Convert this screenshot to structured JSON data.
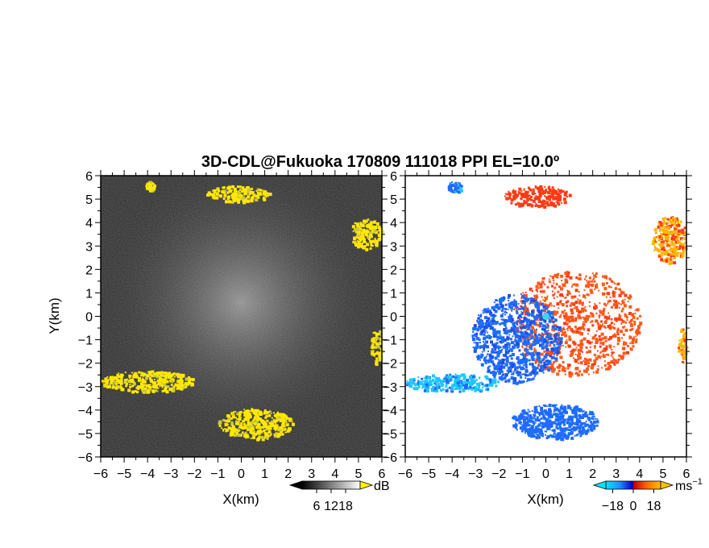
{
  "chart_data": [
    {
      "type": "heatmap",
      "title": "3D-CDL@Fukuoka 170809 111018 PPI EL=10.0º",
      "xlabel": "X(km)",
      "ylabel": "Y(km)",
      "xlim": [
        -6,
        6
      ],
      "ylim": [
        -6,
        6
      ],
      "x_ticks": [
        "−6",
        "−5",
        "−4",
        "−3",
        "−2",
        "−1",
        "0",
        "1",
        "2",
        "3",
        "4",
        "5",
        "6"
      ],
      "y_ticks": [
        "6",
        "5",
        "4",
        "3",
        "2",
        "1",
        "0",
        "−1",
        "−2",
        "−3",
        "−4",
        "−5",
        "−6"
      ],
      "colorbar": {
        "unit": "dB",
        "ticks": [
          "6",
          "12",
          "18"
        ],
        "range": [
          0,
          24
        ]
      },
      "features": [
        {
          "x": [
            -4.1,
            -3.7
          ],
          "y": [
            5.4,
            5.8
          ],
          "level": "yellow"
        },
        {
          "x": [
            -1.5,
            1.2
          ],
          "y": [
            4.9,
            5.6
          ],
          "level": "yellow"
        },
        {
          "x": [
            4.6,
            6.0
          ],
          "y": [
            2.9,
            4.2
          ],
          "level": "yellow"
        },
        {
          "x": [
            5.5,
            6.0
          ],
          "y": [
            -2.0,
            -0.5
          ],
          "level": "yellow"
        },
        {
          "x": [
            -6.0,
            -2.0
          ],
          "y": [
            -3.2,
            -2.3
          ],
          "level": "yellow"
        },
        {
          "x": [
            -1.0,
            2.2
          ],
          "y": [
            -5.2,
            -3.9
          ],
          "level": "yellow"
        }
      ]
    },
    {
      "type": "heatmap",
      "xlabel": "X(km)",
      "xlim": [
        -6,
        6
      ],
      "ylim": [
        -6,
        6
      ],
      "x_ticks": [
        "−6",
        "−5",
        "−4",
        "−3",
        "−2",
        "−1",
        "0",
        "1",
        "2",
        "3",
        "4",
        "5",
        "6"
      ],
      "y_ticks": [
        "6",
        "5",
        "4",
        "3",
        "2",
        "1",
        "0",
        "−1",
        "−2",
        "−3",
        "−4",
        "−5",
        "−6"
      ],
      "colorbar": {
        "unit": "ms",
        "unit_exponent": "−1",
        "ticks": [
          "−18",
          "0",
          "18"
        ],
        "range": [
          -24,
          24
        ]
      },
      "features": [
        {
          "x": [
            -4.2,
            -3.6
          ],
          "y": [
            5.3,
            5.8
          ],
          "velocity": -16
        },
        {
          "x": [
            -1.8,
            1.0
          ],
          "y": [
            4.7,
            5.6
          ],
          "velocity": 14
        },
        {
          "x": [
            -1.5,
            4.0
          ],
          "y": [
            -2.5,
            2.0
          ],
          "velocity": 8
        },
        {
          "x": [
            -3.2,
            0.6
          ],
          "y": [
            -2.8,
            1.0
          ],
          "velocity": -12
        },
        {
          "x": [
            -1.5,
            2.2
          ],
          "y": [
            -5.2,
            -3.7
          ],
          "velocity": -14
        },
        {
          "x": [
            -6.0,
            -2.0
          ],
          "y": [
            -3.2,
            -2.4
          ],
          "velocity": -20
        },
        {
          "x": [
            4.5,
            6.0
          ],
          "y": [
            2.3,
            4.3
          ],
          "velocity": 20
        },
        {
          "x": [
            5.6,
            6.0
          ],
          "y": [
            -2.0,
            -0.5
          ],
          "velocity": 20
        }
      ]
    }
  ]
}
